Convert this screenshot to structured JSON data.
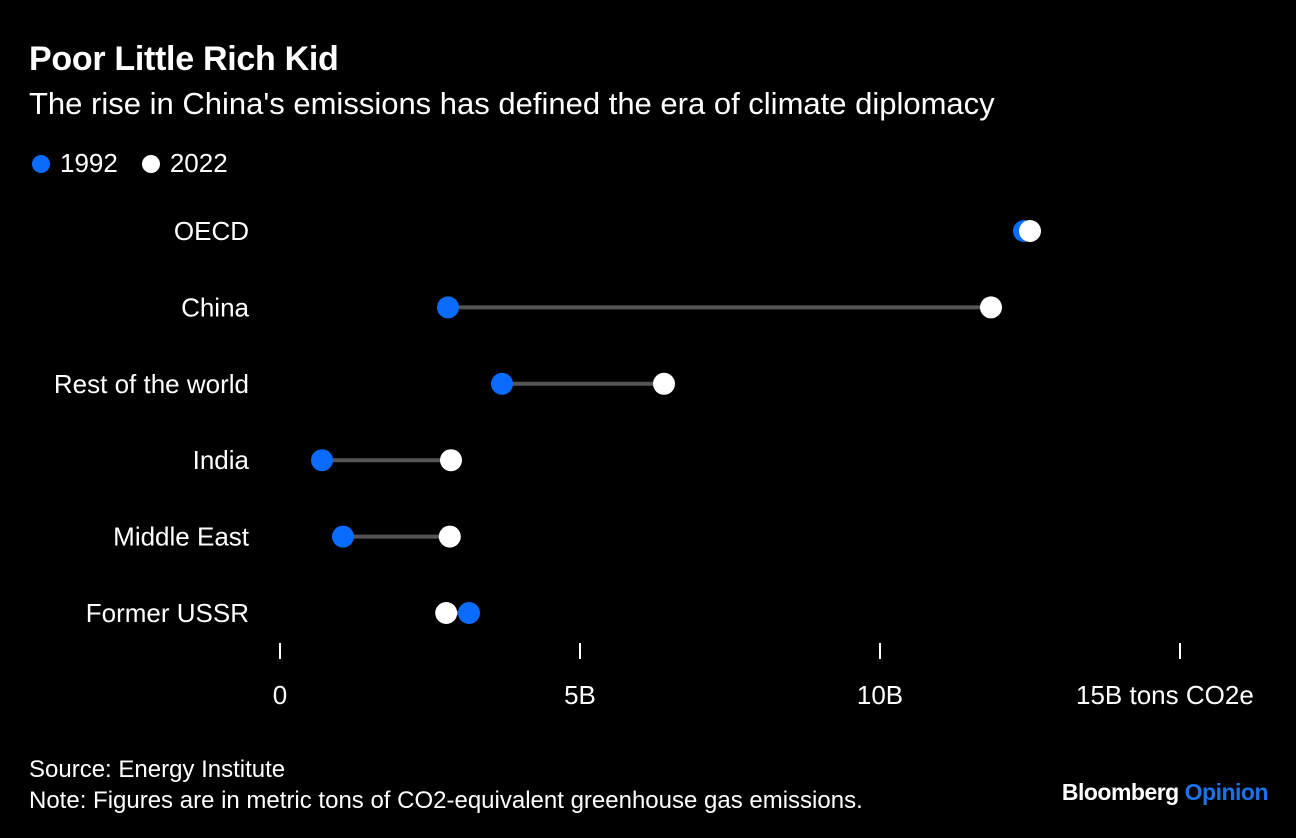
{
  "header": {
    "title": "Poor Little Rich Kid",
    "subtitle": "The rise in China's emissions has defined the era of climate diplomacy"
  },
  "legend": [
    {
      "label": "1992",
      "color": "#0a6cff"
    },
    {
      "label": "2022",
      "color": "#ffffff"
    }
  ],
  "chart_data": {
    "type": "dumbbell",
    "categories": [
      "OECD",
      "China",
      "Rest of the world",
      "India",
      "Middle East",
      "Former USSR"
    ],
    "series": [
      {
        "name": "1992",
        "color": "#0a6cff",
        "values": [
          12.4,
          2.8,
          3.7,
          0.7,
          1.05,
          3.15
        ]
      },
      {
        "name": "2022",
        "color": "#ffffff",
        "values": [
          12.5,
          11.85,
          6.4,
          2.85,
          2.83,
          2.77
        ]
      }
    ],
    "xlim": [
      0,
      15
    ],
    "ticks": [
      {
        "value": 0,
        "label": "0"
      },
      {
        "value": 5,
        "label": "5B"
      },
      {
        "value": 10,
        "label": "10B"
      },
      {
        "value": 15,
        "label": "15B tons CO2e"
      }
    ],
    "connector_color": "#555555"
  },
  "footer": {
    "source": "Source: Energy Institute",
    "note": "Note: Figures are in metric tons of CO2-equivalent greenhouse gas emissions."
  },
  "brand": {
    "name": "Bloomberg",
    "section": "Opinion"
  }
}
